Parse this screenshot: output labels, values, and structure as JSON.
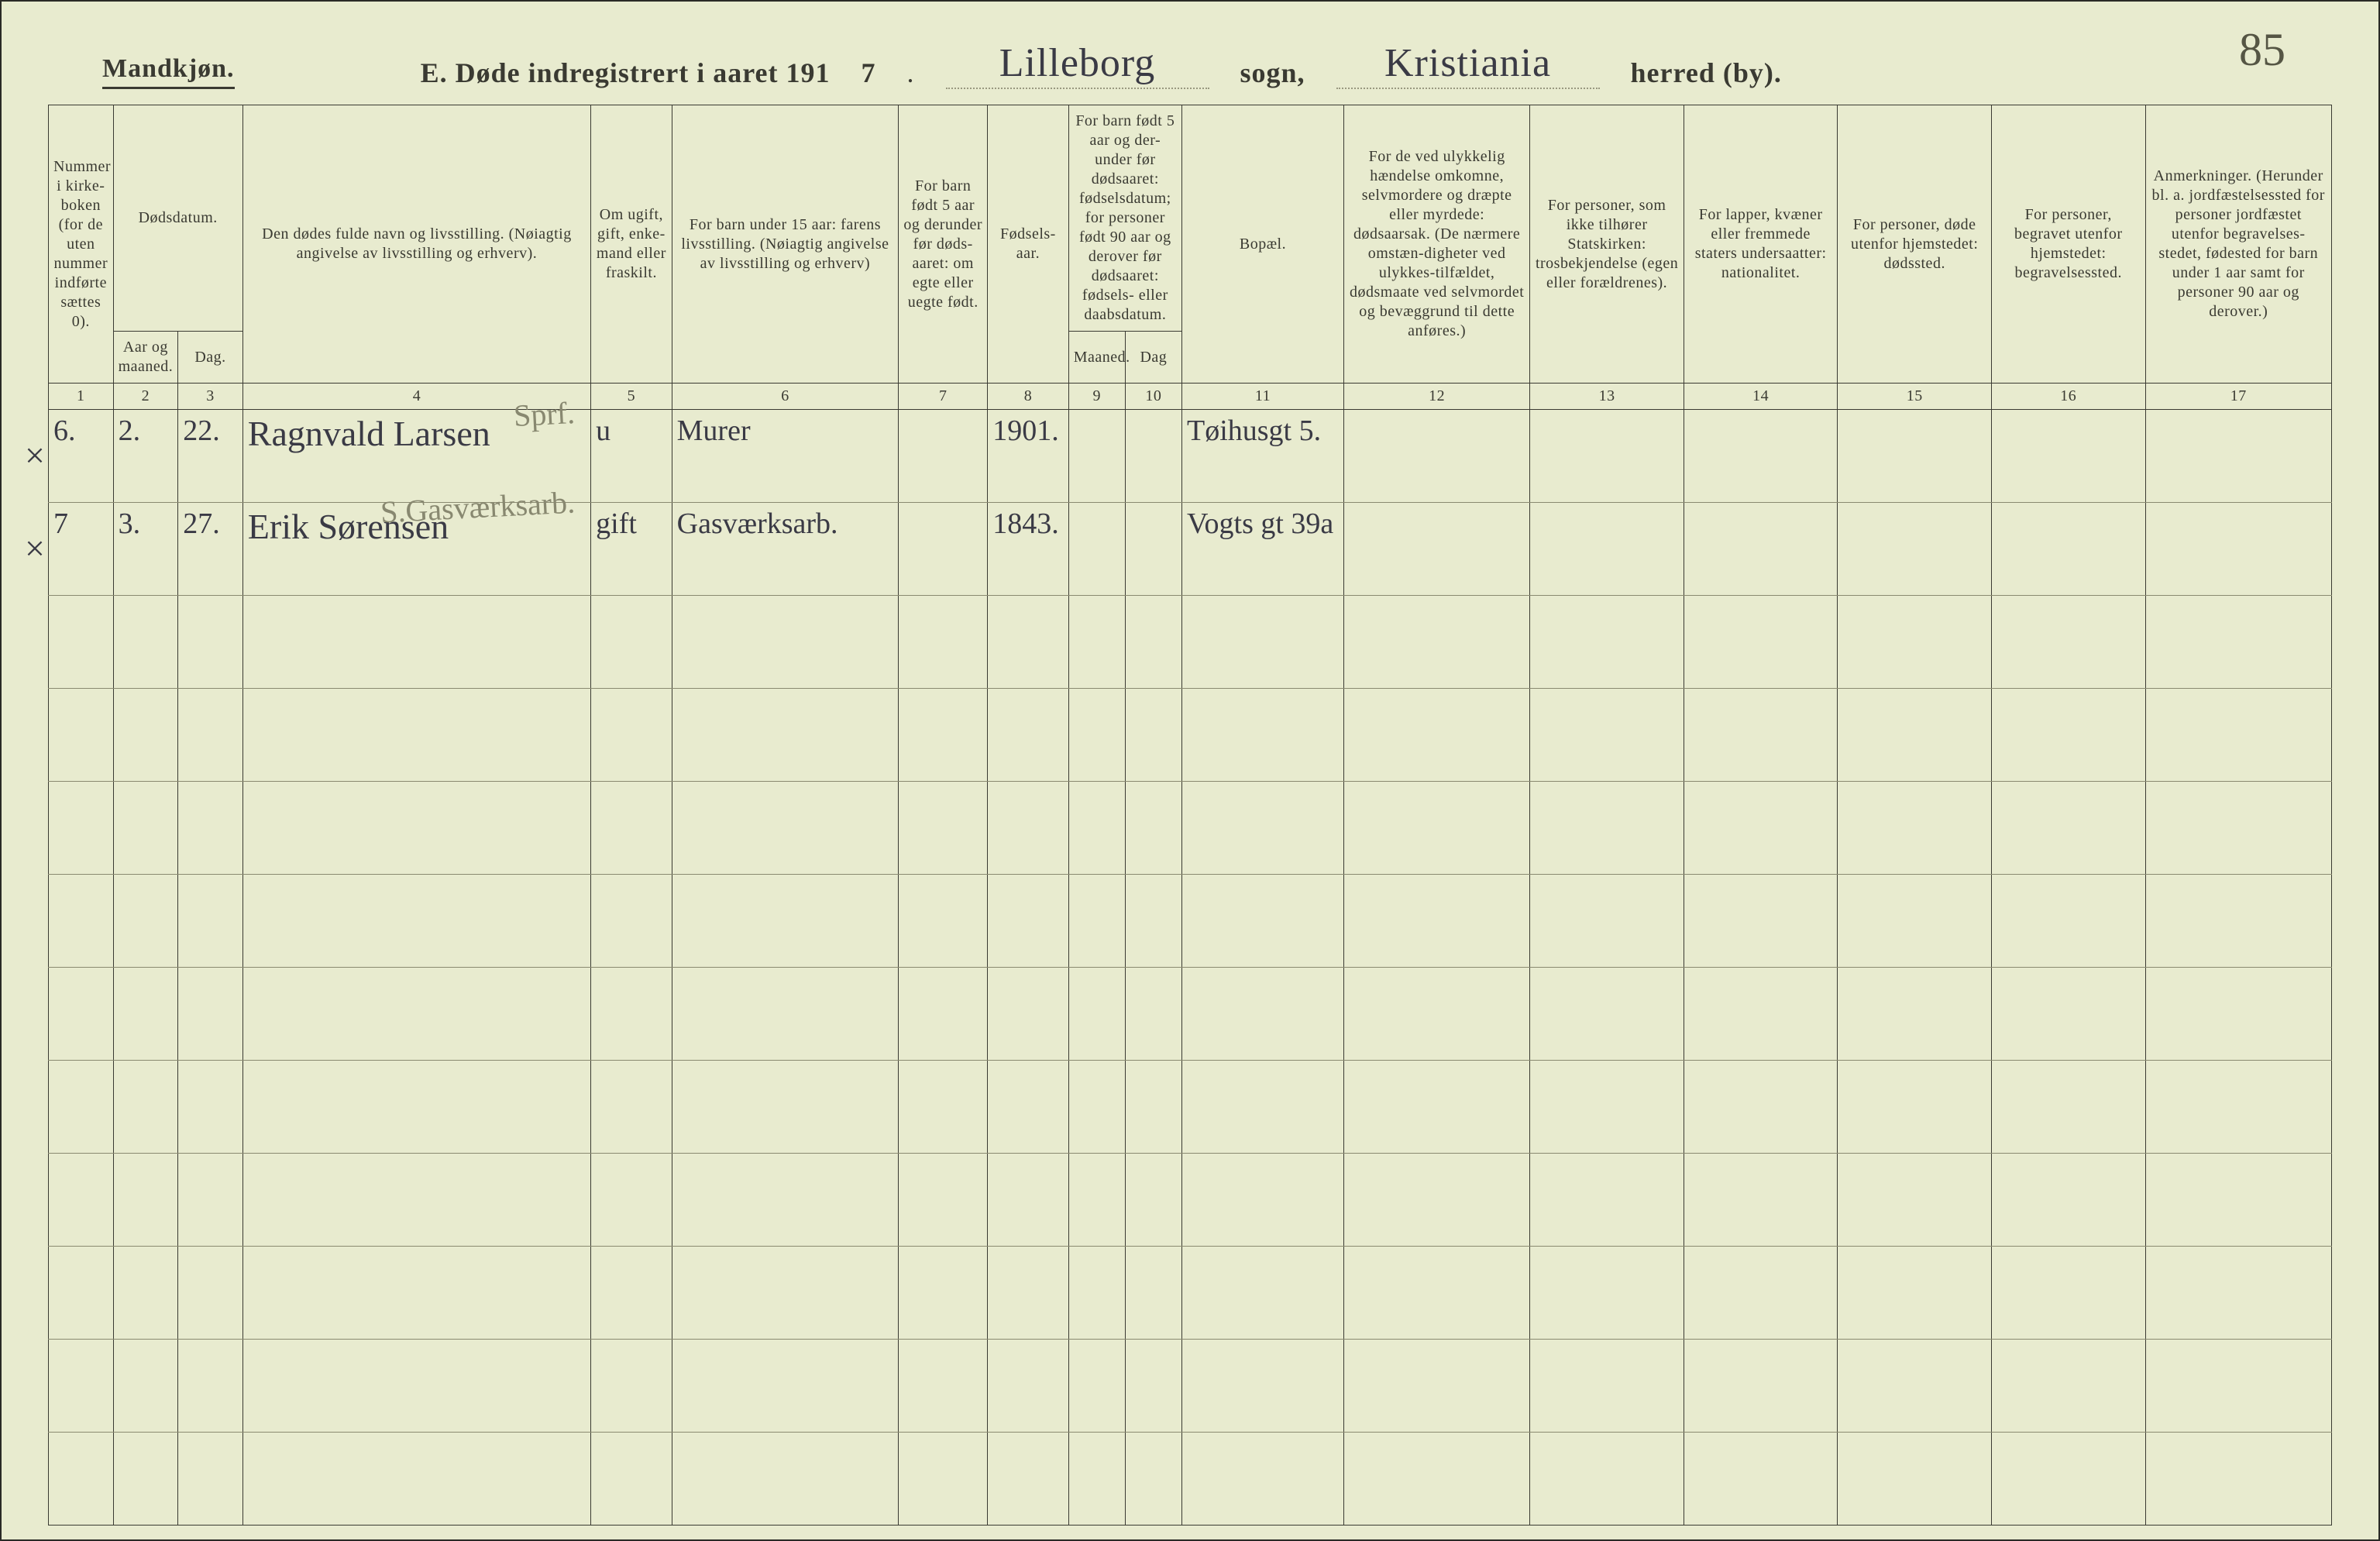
{
  "page_number": "85",
  "header": {
    "gender": "Mandkjøn.",
    "line_prefix": "E.  Døde indregistrert i aaret 191",
    "year_last_digit": "7",
    "parish_blank": "Lilleborg",
    "parish_label": "sogn,",
    "district_blank": "Kristiania",
    "district_label": "herred (by)."
  },
  "columns": {
    "c1": "Nummer i kirke-boken (for de uten nummer indførte sættes 0).",
    "date_group": "Dødsdatum.",
    "c2": "Aar og maaned.",
    "c3": "Dag.",
    "c4": "Den dødes fulde navn og livsstilling. (Nøiagtig angivelse av livsstilling og erhverv).",
    "c5": "Om ugift, gift, enke-mand eller fraskilt.",
    "c6": "For barn under 15 aar: farens livsstilling. (Nøiagtig angivelse av livsstilling og erhverv)",
    "c7": "For barn født 5 aar og derunder før døds-aaret: om egte eller uegte født.",
    "c8": "Fødsels- aar.",
    "c910_top": "For barn født 5 aar og der-under før dødsaaret: fødselsdatum; for personer født 90 aar og derover før dødsaaret: fødsels- eller daabsdatum.",
    "c9": "Maaned.",
    "c10": "Dag",
    "c11": "Bopæl.",
    "c12": "For de ved ulykkelig hændelse omkomne, selvmordere og dræpte eller myrdede: dødsaarsak. (De nærmere omstæn-digheter ved ulykkes-tilfældet, dødsmaate ved selvmordet og bevæggrund til dette anføres.)",
    "c13": "For personer, som ikke tilhører Statskirken: trosbekjendelse (egen eller forældrenes).",
    "c14": "For lapper, kvæner eller fremmede staters undersaatter: nationalitet.",
    "c15": "For personer, døde utenfor hjemstedet: dødssted.",
    "c16": "For personer, begravet utenfor hjemstedet: begravelsessted.",
    "c17": "Anmerkninger. (Herunder bl. a. jordfæstelsessted for personer jordfæstet utenfor begravelses-stedet, fødested for barn under 1 aar samt for personer 90 aar og derover.)"
  },
  "colnums": [
    "1",
    "2",
    "3",
    "4",
    "5",
    "6",
    "7",
    "8",
    "9",
    "10",
    "11",
    "12",
    "13",
    "14",
    "15",
    "16",
    "17"
  ],
  "rows": [
    {
      "mark": "×",
      "n": "6.",
      "ym": "2.",
      "day": "22.",
      "name": "Ragnvald Larsen",
      "name_over": "Sprf.",
      "civil": "u",
      "father": "Murer",
      "born": "1901.",
      "residence": "Tøihusgt 5."
    },
    {
      "mark": "×",
      "n": "7",
      "ym": "3.",
      "day": "27.",
      "name": "Erik Sørensen",
      "name_over": "S.Gasværksarb.",
      "civil": "gift",
      "father": "Gasværksarb.",
      "born": "1843.",
      "residence": "Vogts gt 39a"
    }
  ],
  "blank_rows": 10,
  "style": {
    "page_bg": "#e8ebcf",
    "ink": "#3a3a32",
    "cursive_ink": "#3a3a45",
    "pencil": "#888870",
    "rule_light": "#8a8a70"
  }
}
